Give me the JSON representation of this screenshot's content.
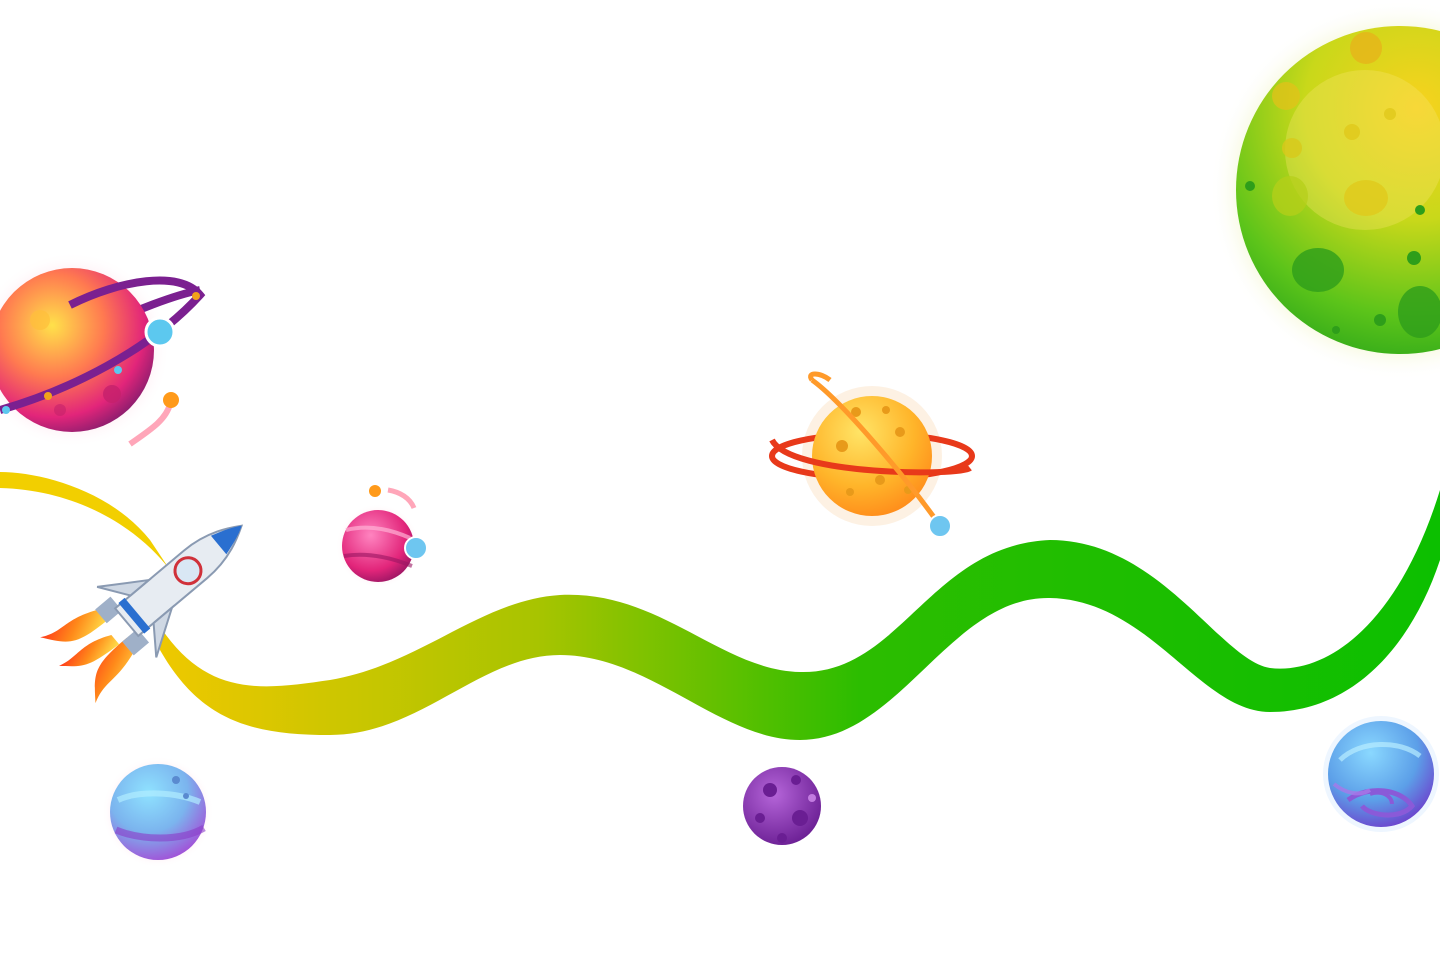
{
  "scene": {
    "name": "space-journey-map",
    "colors": {
      "background": "#ffffff",
      "path_start": "#e8c400",
      "path_end": "#0cbf00",
      "trail_yellow": "#f2cf00"
    },
    "elements": [
      {
        "id": "ringed-planet-pink",
        "type": "planet",
        "icon": "ringed-planet-icon",
        "colors": [
          "#ffd23a",
          "#ff3f8a",
          "#8a1f7a"
        ]
      },
      {
        "id": "comet-small-left",
        "type": "comet",
        "icon": "comet-icon"
      },
      {
        "id": "rocket",
        "type": "rocket",
        "icon": "rocket-icon"
      },
      {
        "id": "small-pink-planet",
        "type": "planet",
        "icon": "planet-icon",
        "colors": [
          "#ff5aa8",
          "#c0187a"
        ]
      },
      {
        "id": "orange-ringed-planet",
        "type": "planet",
        "icon": "ringed-planet-icon",
        "colors": [
          "#ffd34a",
          "#ff8a1a",
          "#e8391a"
        ]
      },
      {
        "id": "green-moon",
        "type": "planet",
        "icon": "cratered-moon-icon",
        "colors": [
          "#f5d21a",
          "#6fcf1a",
          "#1a9a1a"
        ]
      },
      {
        "id": "blue-purple-planet-left",
        "type": "planet",
        "icon": "planet-icon",
        "colors": [
          "#6fd3ff",
          "#a64bd8"
        ]
      },
      {
        "id": "purple-asteroid",
        "type": "planet",
        "icon": "asteroid-icon",
        "colors": [
          "#a34fc8",
          "#6b1f95"
        ]
      },
      {
        "id": "blue-swirl-planet",
        "type": "planet",
        "icon": "swirl-planet-icon",
        "colors": [
          "#6fc6ff",
          "#7d4bd0"
        ]
      }
    ]
  }
}
